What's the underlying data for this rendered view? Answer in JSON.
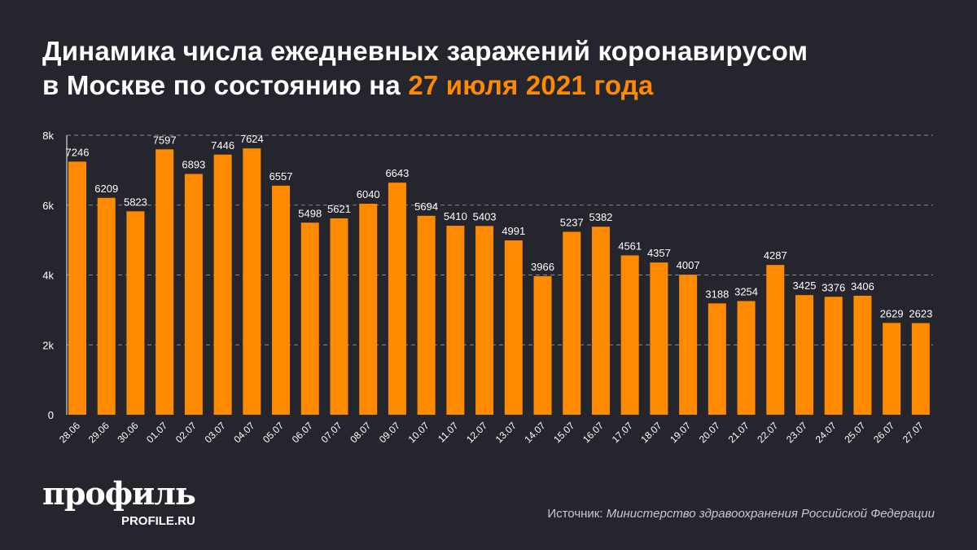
{
  "title": {
    "line1": "Динамика числа ежедневных заражений коронавирусом",
    "line2_prefix": "в Москве по состоянию на ",
    "line2_highlight": "27 июля 2021 года"
  },
  "colors": {
    "bar": "#ff8a00",
    "background": "#25252d",
    "highlight": "#ff8a00"
  },
  "logo": {
    "name": "профиль",
    "site": "PROFILE.RU"
  },
  "source": {
    "label": "Источник: ",
    "value": "Министерство здравоохранения Российской Федерации"
  },
  "chart_data": {
    "type": "bar",
    "categories": [
      "28.06",
      "29.06",
      "30.06",
      "01.07",
      "02.07",
      "03.07",
      "04.07",
      "05.07",
      "06.07",
      "07.07",
      "08.07",
      "09.07",
      "10.07",
      "11.07",
      "12.07",
      "13.07",
      "14.07",
      "15.07",
      "16.07",
      "17.07",
      "18.07",
      "19.07",
      "20.07",
      "21.07",
      "22.07",
      "23.07",
      "24.07",
      "25.07",
      "26.07",
      "27.07"
    ],
    "values": [
      7246,
      6209,
      5823,
      7597,
      6893,
      7446,
      7624,
      6557,
      5498,
      5621,
      6040,
      6643,
      5694,
      5410,
      5403,
      4991,
      3966,
      5237,
      5382,
      4561,
      4357,
      4007,
      3188,
      3254,
      4287,
      3425,
      3376,
      3406,
      2629,
      2623
    ],
    "yticks": [
      0,
      2000,
      4000,
      6000,
      8000
    ],
    "ytick_labels": [
      "0",
      "2k",
      "4k",
      "6k",
      "8k"
    ],
    "ylim": [
      0,
      8000
    ],
    "grid": true,
    "data_labels": true
  }
}
